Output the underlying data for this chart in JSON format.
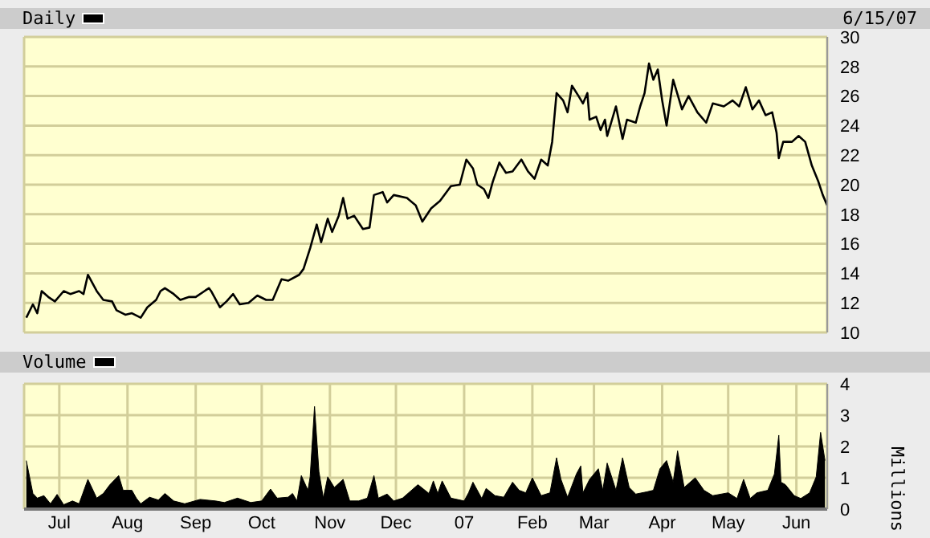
{
  "chart_data": [
    {
      "type": "line",
      "legend": "top left",
      "annotations": [
        "6/15/07"
      ],
      "tick_labels": "y",
      "grid": true,
      "x": [
        "2006-06-16",
        "2006-06-19",
        "2006-06-21",
        "2006-06-23",
        "2006-06-26",
        "2006-06-29",
        "2006-07-03",
        "2006-07-06",
        "2006-07-10",
        "2006-07-12",
        "2006-07-14",
        "2006-07-18",
        "2006-07-21",
        "2006-07-25",
        "2006-07-27",
        "2006-07-31",
        "2006-08-03",
        "2006-08-07",
        "2006-08-10",
        "2006-08-14",
        "2006-08-16",
        "2006-08-18",
        "2006-08-22",
        "2006-08-25",
        "2006-08-29",
        "2006-09-01",
        "2006-09-05",
        "2006-09-07",
        "2006-09-08",
        "2006-09-12",
        "2006-09-15",
        "2006-09-18",
        "2006-09-21",
        "2006-09-25",
        "2006-09-29",
        "2006-10-03",
        "2006-10-06",
        "2006-10-10",
        "2006-10-13",
        "2006-10-18",
        "2006-10-20",
        "2006-10-23",
        "2006-10-26",
        "2006-10-28",
        "2006-10-31",
        "2006-11-02",
        "2006-11-05",
        "2006-11-07",
        "2006-11-09",
        "2006-11-12",
        "2006-11-16",
        "2006-11-19",
        "2006-11-21",
        "2006-11-25",
        "2006-11-27",
        "2006-11-30",
        "2006-12-06",
        "2006-12-10",
        "2006-12-13",
        "2006-12-17",
        "2006-12-21",
        "2006-12-26",
        "2006-12-30",
        "2007-01-02",
        "2007-01-05",
        "2007-01-07",
        "2007-01-10",
        "2007-01-12",
        "2007-01-14",
        "2007-01-17",
        "2007-01-20",
        "2007-01-23",
        "2007-01-27",
        "2007-01-30",
        "2007-02-02",
        "2007-02-05",
        "2007-02-08",
        "2007-02-10",
        "2007-02-12",
        "2007-02-15",
        "2007-02-17",
        "2007-02-19",
        "2007-02-22",
        "2007-02-24",
        "2007-02-26",
        "2007-02-27",
        "2007-03-02",
        "2007-03-04",
        "2007-03-06",
        "2007-03-07",
        "2007-03-11",
        "2007-03-14",
        "2007-03-16",
        "2007-03-20",
        "2007-03-22",
        "2007-03-24",
        "2007-03-26",
        "2007-03-28",
        "2007-03-30",
        "2007-04-01",
        "2007-04-03",
        "2007-04-06",
        "2007-04-10",
        "2007-04-13",
        "2007-04-17",
        "2007-04-21",
        "2007-04-24",
        "2007-04-29",
        "2007-05-03",
        "2007-05-06",
        "2007-05-09",
        "2007-05-12",
        "2007-05-15",
        "2007-05-18",
        "2007-05-21",
        "2007-05-23",
        "2007-05-24",
        "2007-05-26",
        "2007-05-30",
        "2007-06-02",
        "2007-06-05",
        "2007-06-08",
        "2007-06-11",
        "2007-06-13",
        "2007-06-15"
      ],
      "series": [
        {
          "name": "Daily",
          "color": "#000000",
          "values": [
            11.0,
            11.9,
            11.3,
            12.8,
            12.4,
            12.1,
            12.8,
            12.6,
            12.8,
            12.6,
            13.9,
            12.8,
            12.2,
            12.1,
            11.5,
            11.2,
            11.3,
            11.0,
            11.7,
            12.2,
            12.8,
            13.0,
            12.6,
            12.2,
            12.4,
            12.4,
            12.8,
            13.0,
            12.8,
            11.7,
            12.1,
            12.6,
            11.9,
            12.0,
            12.5,
            12.2,
            12.2,
            13.6,
            13.5,
            13.9,
            14.3,
            15.7,
            17.3,
            16.1,
            17.7,
            16.8,
            17.9,
            19.1,
            17.7,
            17.9,
            17.0,
            17.1,
            19.3,
            19.5,
            18.8,
            19.3,
            19.1,
            18.6,
            17.5,
            18.4,
            18.9,
            19.9,
            20.0,
            21.7,
            21.1,
            20.0,
            19.7,
            19.1,
            20.2,
            21.5,
            20.8,
            20.9,
            21.7,
            20.9,
            20.4,
            21.7,
            21.3,
            22.9,
            26.2,
            25.7,
            24.9,
            26.7,
            26.0,
            25.5,
            26.2,
            24.4,
            24.6,
            23.7,
            24.4,
            23.3,
            25.3,
            23.1,
            24.4,
            24.2,
            25.3,
            26.2,
            28.2,
            27.1,
            27.8,
            25.7,
            24.0,
            27.1,
            25.1,
            26.0,
            24.9,
            24.2,
            25.5,
            25.3,
            25.7,
            25.3,
            26.6,
            25.1,
            25.7,
            24.7,
            24.9,
            23.5,
            21.8,
            22.9,
            22.9,
            23.3,
            22.9,
            21.3,
            20.2,
            19.3,
            18.6
          ]
        }
      ],
      "xlim": [
        "2006-06-15",
        "2007-06-15"
      ],
      "xticks": [
        {
          "value": "2006-07-01",
          "label": null
        },
        {
          "value": "2006-08-01",
          "label": null
        },
        {
          "value": "2006-09-01",
          "label": null
        },
        {
          "value": "2006-10-01",
          "label": null
        },
        {
          "value": "2006-11-01",
          "label": null
        },
        {
          "value": "2006-12-01",
          "label": null
        },
        {
          "value": "2007-01-01",
          "label": null
        },
        {
          "value": "2007-02-01",
          "label": null
        },
        {
          "value": "2007-03-01",
          "label": null
        },
        {
          "value": "2007-04-01",
          "label": null
        },
        {
          "value": "2007-05-01",
          "label": null
        },
        {
          "value": "2007-06-01",
          "label": null
        }
      ],
      "ylim": [
        10,
        30
      ],
      "yticks": [
        10,
        12,
        14,
        16,
        18,
        20,
        22,
        24,
        26,
        28,
        30
      ]
    },
    {
      "type": "area",
      "legend": "top left",
      "ylabel": "Millions",
      "grid": true,
      "x": [
        "2006-06-16",
        "2006-06-19",
        "2006-06-21",
        "2006-06-24",
        "2006-06-27",
        "2006-06-30",
        "2006-07-03",
        "2006-07-07",
        "2006-07-10",
        "2006-07-14",
        "2006-07-18",
        "2006-07-21",
        "2006-07-24",
        "2006-07-28",
        "2006-07-30",
        "2006-08-03",
        "2006-08-05",
        "2006-08-07",
        "2006-08-11",
        "2006-08-15",
        "2006-08-18",
        "2006-08-22",
        "2006-08-27",
        "2006-09-03",
        "2006-09-10",
        "2006-09-14",
        "2006-09-20",
        "2006-09-26",
        "2006-10-01",
        "2006-10-05",
        "2006-10-08",
        "2006-10-13",
        "2006-10-15",
        "2006-10-17",
        "2006-10-19",
        "2006-10-22",
        "2006-10-23",
        "2006-10-25",
        "2006-10-27",
        "2006-10-29",
        "2006-10-31",
        "2006-11-03",
        "2006-11-07",
        "2006-11-10",
        "2006-11-14",
        "2006-11-18",
        "2006-11-21",
        "2006-11-23",
        "2006-11-27",
        "2006-11-30",
        "2006-12-04",
        "2006-12-11",
        "2006-12-16",
        "2006-12-18",
        "2006-12-20",
        "2006-12-22",
        "2006-12-26",
        "2007-01-01",
        "2007-01-03",
        "2007-01-05",
        "2007-01-09",
        "2007-01-11",
        "2007-01-15",
        "2007-01-19",
        "2007-01-23",
        "2007-01-26",
        "2007-01-29",
        "2007-02-01",
        "2007-02-05",
        "2007-02-09",
        "2007-02-12",
        "2007-02-14",
        "2007-02-17",
        "2007-02-21",
        "2007-02-23",
        "2007-02-24",
        "2007-02-27",
        "2007-03-03",
        "2007-03-05",
        "2007-03-07",
        "2007-03-11",
        "2007-03-14",
        "2007-03-17",
        "2007-03-20",
        "2007-03-25",
        "2007-03-28",
        "2007-03-31",
        "2007-04-03",
        "2007-04-06",
        "2007-04-08",
        "2007-04-11",
        "2007-04-16",
        "2007-04-20",
        "2007-04-24",
        "2007-05-01",
        "2007-05-05",
        "2007-05-08",
        "2007-05-11",
        "2007-05-14",
        "2007-05-19",
        "2007-05-22",
        "2007-05-24",
        "2007-05-25",
        "2007-05-27",
        "2007-05-31",
        "2007-06-03",
        "2007-06-07",
        "2007-06-10",
        "2007-06-12",
        "2007-06-14"
      ],
      "series": [
        {
          "name": "Volume",
          "color": "#000000",
          "values": [
            1.55,
            0.5,
            0.35,
            0.43,
            0.17,
            0.47,
            0.14,
            0.26,
            0.17,
            0.95,
            0.35,
            0.5,
            0.78,
            1.07,
            0.6,
            0.6,
            0.35,
            0.17,
            0.38,
            0.29,
            0.5,
            0.26,
            0.17,
            0.31,
            0.26,
            0.21,
            0.35,
            0.21,
            0.26,
            0.64,
            0.35,
            0.38,
            0.5,
            0.26,
            1.07,
            0.6,
            1.03,
            3.28,
            1.2,
            0.35,
            1.03,
            0.69,
            0.95,
            0.26,
            0.26,
            0.35,
            1.07,
            0.35,
            0.48,
            0.26,
            0.35,
            0.78,
            0.5,
            0.9,
            0.5,
            0.9,
            0.35,
            0.26,
            0.52,
            0.86,
            0.34,
            0.66,
            0.43,
            0.38,
            0.86,
            0.6,
            0.52,
            1.0,
            0.43,
            0.52,
            1.64,
            0.95,
            0.38,
            1.12,
            1.38,
            0.52,
            0.95,
            1.29,
            0.6,
            1.47,
            0.6,
            1.64,
            0.69,
            0.48,
            0.55,
            0.6,
            1.29,
            1.55,
            0.86,
            1.86,
            0.69,
            1.0,
            0.6,
            0.43,
            0.52,
            0.34,
            0.95,
            0.34,
            0.52,
            0.6,
            1.12,
            2.36,
            0.86,
            0.78,
            0.43,
            0.34,
            0.52,
            1.03,
            2.45,
            1.55
          ]
        }
      ],
      "xlim": [
        "2006-06-15",
        "2007-06-15"
      ],
      "xticks": [
        {
          "value": "2006-07-01",
          "label": "Jul"
        },
        {
          "value": "2006-08-01",
          "label": "Aug"
        },
        {
          "value": "2006-09-01",
          "label": "Sep"
        },
        {
          "value": "2006-10-01",
          "label": "Oct"
        },
        {
          "value": "2006-11-01",
          "label": "Nov"
        },
        {
          "value": "2006-12-01",
          "label": "Dec"
        },
        {
          "value": "2007-01-01",
          "label": "07"
        },
        {
          "value": "2007-02-01",
          "label": "Feb"
        },
        {
          "value": "2007-03-01",
          "label": "Mar"
        },
        {
          "value": "2007-04-01",
          "label": "Apr"
        },
        {
          "value": "2007-05-01",
          "label": "May"
        },
        {
          "value": "2007-06-01",
          "label": "Jun"
        }
      ],
      "ylim": [
        0,
        4
      ],
      "yticks": [
        0,
        1,
        2,
        3,
        4
      ]
    }
  ]
}
